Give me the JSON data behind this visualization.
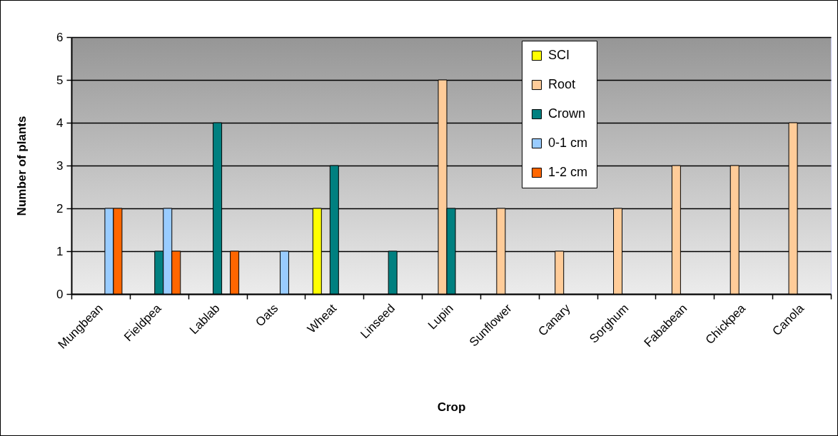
{
  "chart_data": {
    "type": "bar",
    "xlabel": "Crop",
    "ylabel": "Number of plants",
    "categories": [
      "Mungbean",
      "Fieldpea",
      "Lablab",
      "Oats",
      "Wheat",
      "Linseed",
      "Lupin",
      "Sunflower",
      "Canary",
      "Sorghum",
      "Fababean",
      "Chickpea",
      "Canola"
    ],
    "series": [
      {
        "name": "SCI",
        "color": "#ffff00",
        "values": [
          null,
          null,
          null,
          null,
          2,
          null,
          null,
          null,
          null,
          null,
          null,
          null,
          null
        ]
      },
      {
        "name": "Root",
        "color": "#ffcc99",
        "values": [
          null,
          null,
          null,
          null,
          null,
          null,
          5,
          2,
          1,
          2,
          3,
          3,
          4
        ]
      },
      {
        "name": "Crown",
        "color": "#008080",
        "values": [
          null,
          1,
          4,
          null,
          3,
          1,
          2,
          null,
          null,
          null,
          null,
          null,
          null
        ]
      },
      {
        "name": "0-1 cm",
        "color": "#99ccff",
        "values": [
          2,
          2,
          null,
          1,
          null,
          null,
          null,
          null,
          null,
          null,
          null,
          null,
          null
        ]
      },
      {
        "name": "1-2 cm",
        "color": "#ff6600",
        "values": [
          2,
          1,
          1,
          null,
          null,
          null,
          null,
          null,
          null,
          null,
          null,
          null,
          null
        ]
      }
    ],
    "ylim": [
      0,
      6
    ],
    "yticks": [
      0,
      1,
      2,
      3,
      4,
      5,
      6
    ],
    "grid": "y",
    "legend": "top right"
  }
}
